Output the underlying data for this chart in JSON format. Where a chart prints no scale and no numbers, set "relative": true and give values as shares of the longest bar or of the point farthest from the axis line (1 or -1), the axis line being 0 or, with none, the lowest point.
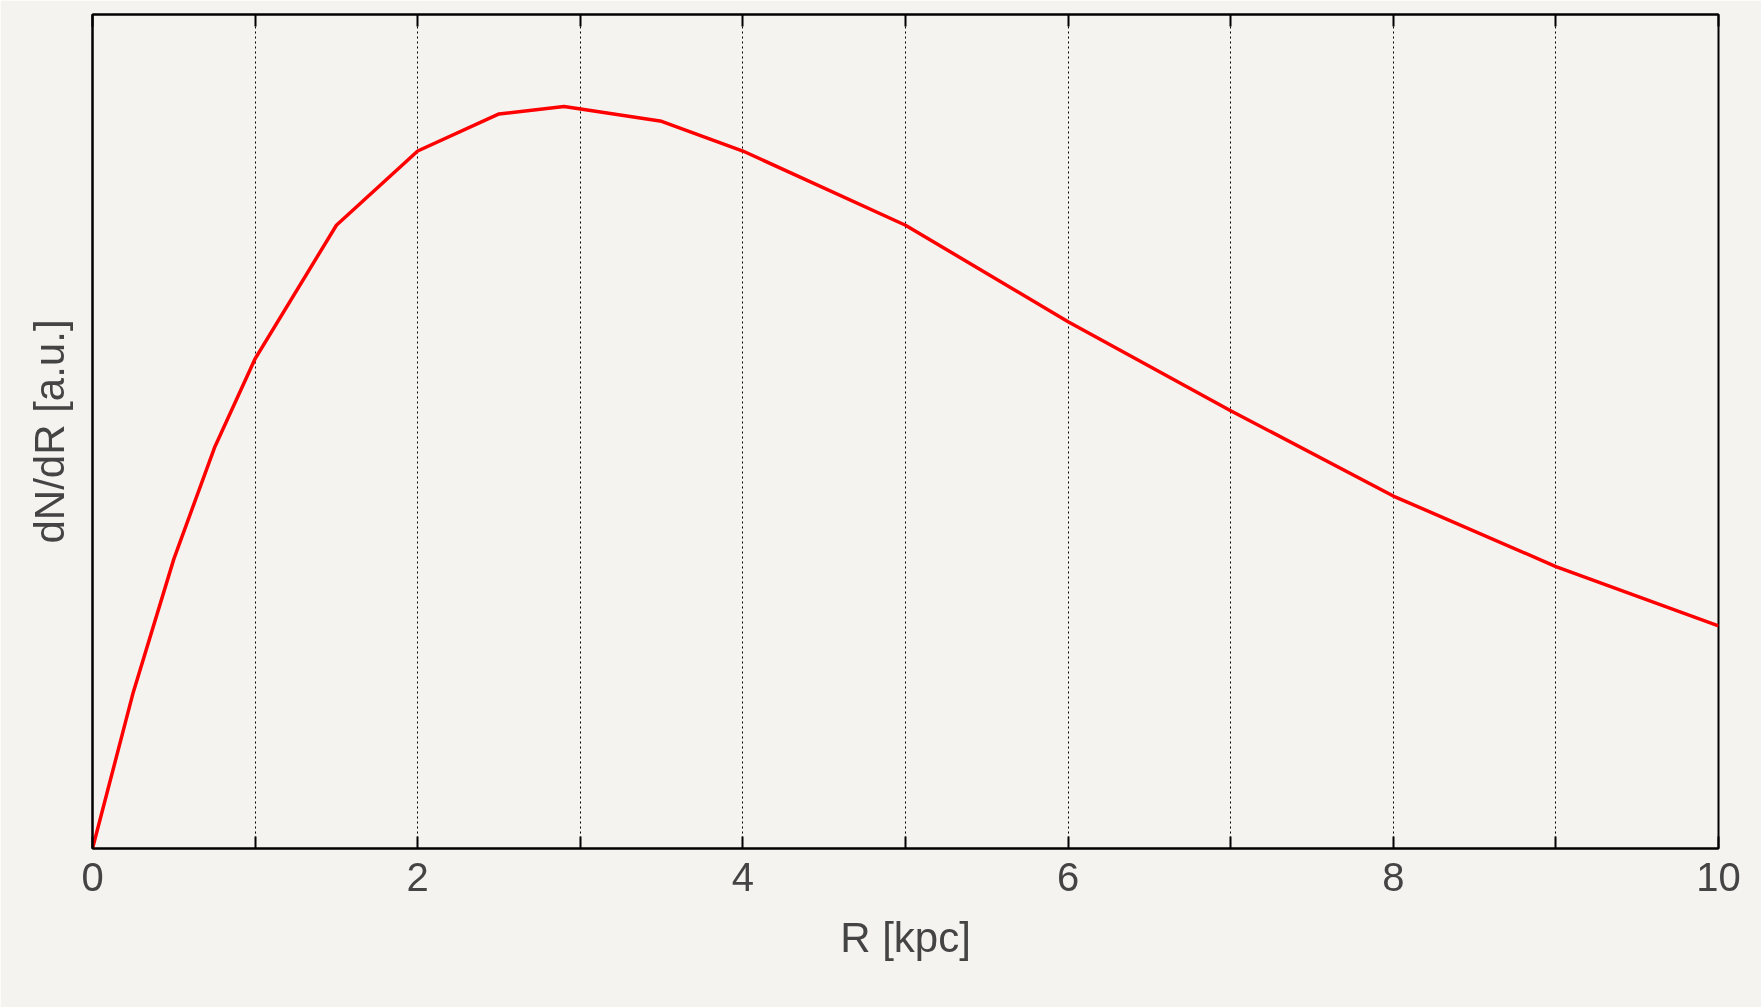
{
  "chart_data": {
    "type": "line",
    "xlabel": "R [kpc]",
    "ylabel": "dN/dR [a.u.]",
    "relative": true,
    "x": [
      0,
      0.25,
      0.5,
      0.75,
      1,
      1.5,
      2,
      2.5,
      2.9,
      3.5,
      4,
      5,
      6,
      7,
      8,
      9,
      10
    ],
    "series": [
      {
        "color": "#ff0000",
        "values": [
          0,
          0.21,
          0.39,
          0.54,
          0.66,
          0.84,
          0.94,
          0.99,
          1.0,
          0.98,
          0.94,
          0.84,
          0.71,
          0.59,
          0.475,
          0.38,
          0.3
        ]
      }
    ],
    "xlim": [
      0,
      10
    ],
    "xticks": [
      0,
      {
        "value": 1,
        "label": null
      },
      2,
      {
        "value": 3,
        "label": null
      },
      4,
      {
        "value": 5,
        "label": null
      },
      6,
      {
        "value": 7,
        "label": null
      },
      8,
      {
        "value": 9,
        "label": null
      },
      10
    ],
    "grid": "x",
    "tick_labels": "x",
    "marker": "none",
    "line_style": "solid"
  }
}
